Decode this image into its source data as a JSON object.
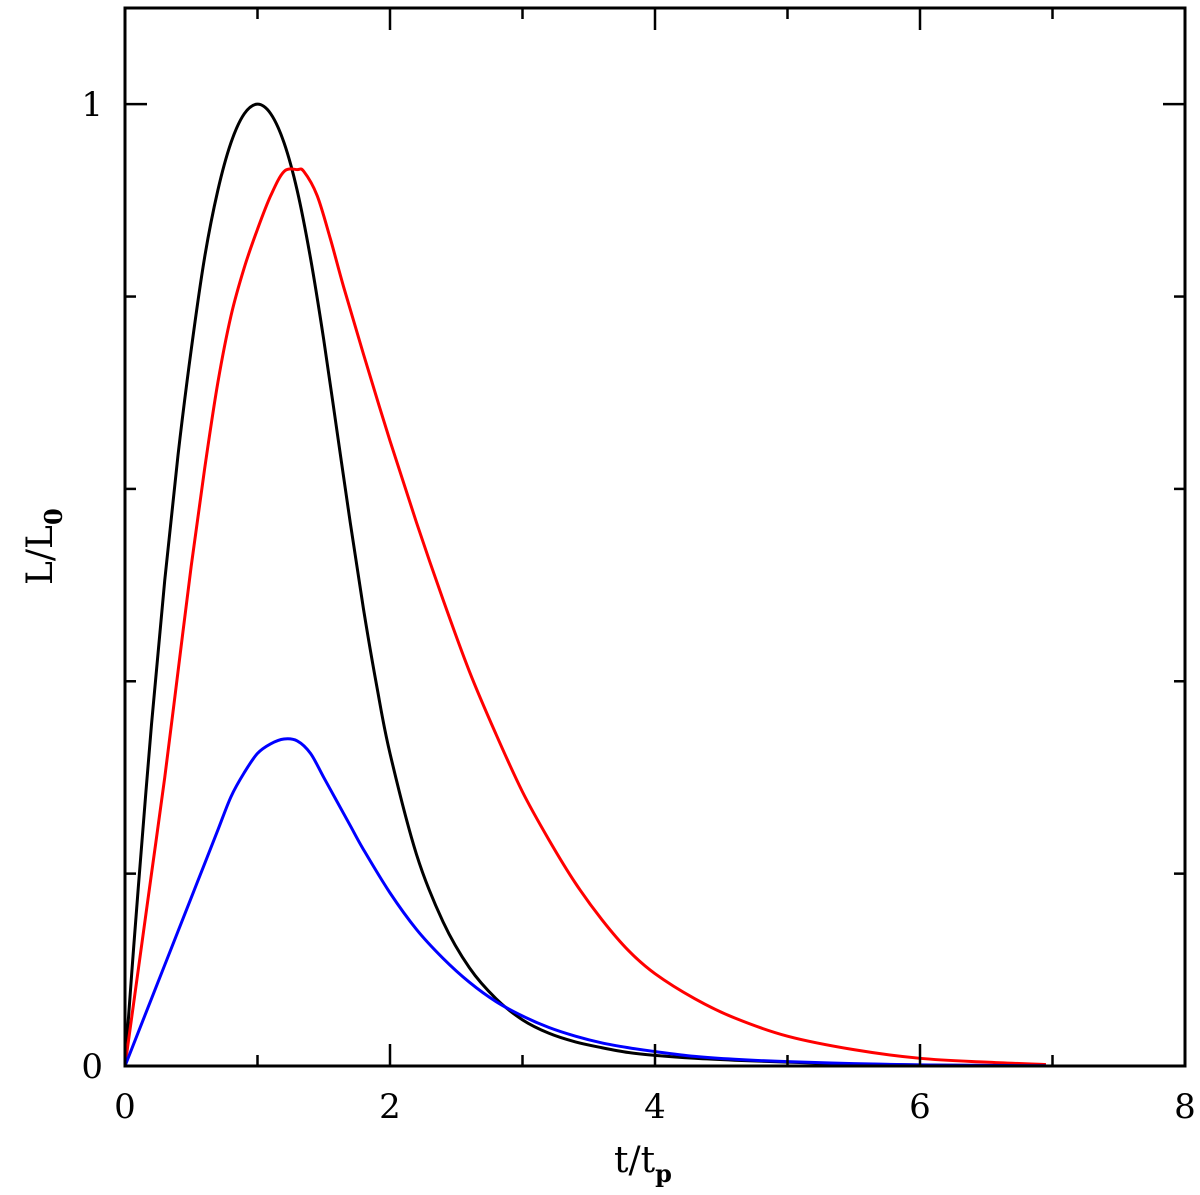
{
  "chart_data": {
    "type": "line",
    "title": "",
    "xlabel": {
      "main": "t/t",
      "sub": "p"
    },
    "ylabel": {
      "main": "L/L",
      "sub": "0"
    },
    "xlim": [
      0,
      8
    ],
    "ylim": [
      0,
      1.1
    ],
    "x_major_ticks": [
      0,
      2,
      4,
      6,
      8
    ],
    "x_minor_ticks": [
      1,
      3,
      5,
      7
    ],
    "x_tick_labels": [
      "0",
      "2",
      "4",
      "6",
      "8"
    ],
    "y_major_ticks": [
      0,
      1
    ],
    "y_minor_ticks": [
      0.2,
      0.4,
      0.6,
      0.8
    ],
    "y_tick_labels": [
      "0",
      "1"
    ],
    "grid": false,
    "legend": "none",
    "series": [
      {
        "color": "#000000",
        "x": [
          0,
          0.05,
          0.1,
          0.2,
          0.3,
          0.4,
          0.5,
          0.6,
          0.7,
          0.8,
          0.9,
          1.0,
          1.1,
          1.2,
          1.3,
          1.4,
          1.5,
          1.6,
          1.7,
          1.8,
          1.9,
          2.0,
          2.2,
          2.4,
          2.6,
          2.8,
          3.0,
          3.2,
          3.4,
          3.6,
          3.8,
          4.0,
          4.3,
          4.6,
          5.0,
          5.5,
          6.0,
          6.5,
          6.95
        ],
        "y": [
          0,
          0.095,
          0.185,
          0.355,
          0.505,
          0.635,
          0.745,
          0.84,
          0.91,
          0.96,
          0.99,
          1.0,
          0.99,
          0.96,
          0.91,
          0.84,
          0.755,
          0.66,
          0.565,
          0.475,
          0.395,
          0.325,
          0.22,
          0.15,
          0.102,
          0.07,
          0.048,
          0.034,
          0.025,
          0.019,
          0.014,
          0.011,
          0.008,
          0.006,
          0.004,
          0.002,
          0.001,
          0.0005,
          0.0002
        ]
      },
      {
        "color": "#ff0000",
        "x": [
          0,
          0.1,
          0.2,
          0.3,
          0.4,
          0.5,
          0.6,
          0.7,
          0.8,
          0.9,
          1.0,
          1.1,
          1.2,
          1.3,
          1.35,
          1.45,
          1.55,
          1.65,
          1.8,
          2.0,
          2.2,
          2.4,
          2.6,
          2.8,
          3.0,
          3.2,
          3.4,
          3.6,
          3.8,
          4.0,
          4.3,
          4.6,
          5.0,
          5.5,
          6.0,
          6.5,
          6.95
        ],
        "y": [
          0,
          0.1,
          0.2,
          0.3,
          0.41,
          0.52,
          0.62,
          0.71,
          0.78,
          0.83,
          0.87,
          0.905,
          0.93,
          0.932,
          0.93,
          0.905,
          0.86,
          0.81,
          0.74,
          0.65,
          0.565,
          0.485,
          0.41,
          0.345,
          0.285,
          0.235,
          0.19,
          0.152,
          0.12,
          0.096,
          0.07,
          0.05,
          0.031,
          0.017,
          0.008,
          0.004,
          0.0015
        ]
      },
      {
        "color": "#0000ff",
        "x": [
          0,
          0.1,
          0.2,
          0.3,
          0.4,
          0.5,
          0.6,
          0.7,
          0.8,
          0.9,
          1.0,
          1.1,
          1.2,
          1.3,
          1.4,
          1.5,
          1.6,
          1.7,
          1.8,
          2.0,
          2.2,
          2.4,
          2.6,
          2.8,
          3.0,
          3.2,
          3.4,
          3.6,
          3.8,
          4.0,
          4.3,
          4.6,
          5.0,
          5.5,
          6.0,
          6.5,
          6.95
        ],
        "y": [
          0,
          0.035,
          0.07,
          0.105,
          0.14,
          0.175,
          0.21,
          0.245,
          0.28,
          0.305,
          0.325,
          0.335,
          0.34,
          0.338,
          0.325,
          0.3,
          0.275,
          0.25,
          0.225,
          0.18,
          0.142,
          0.112,
          0.087,
          0.067,
          0.052,
          0.04,
          0.031,
          0.024,
          0.019,
          0.015,
          0.01,
          0.007,
          0.0045,
          0.0025,
          0.0012,
          0.0006,
          0.0003
        ]
      }
    ]
  }
}
